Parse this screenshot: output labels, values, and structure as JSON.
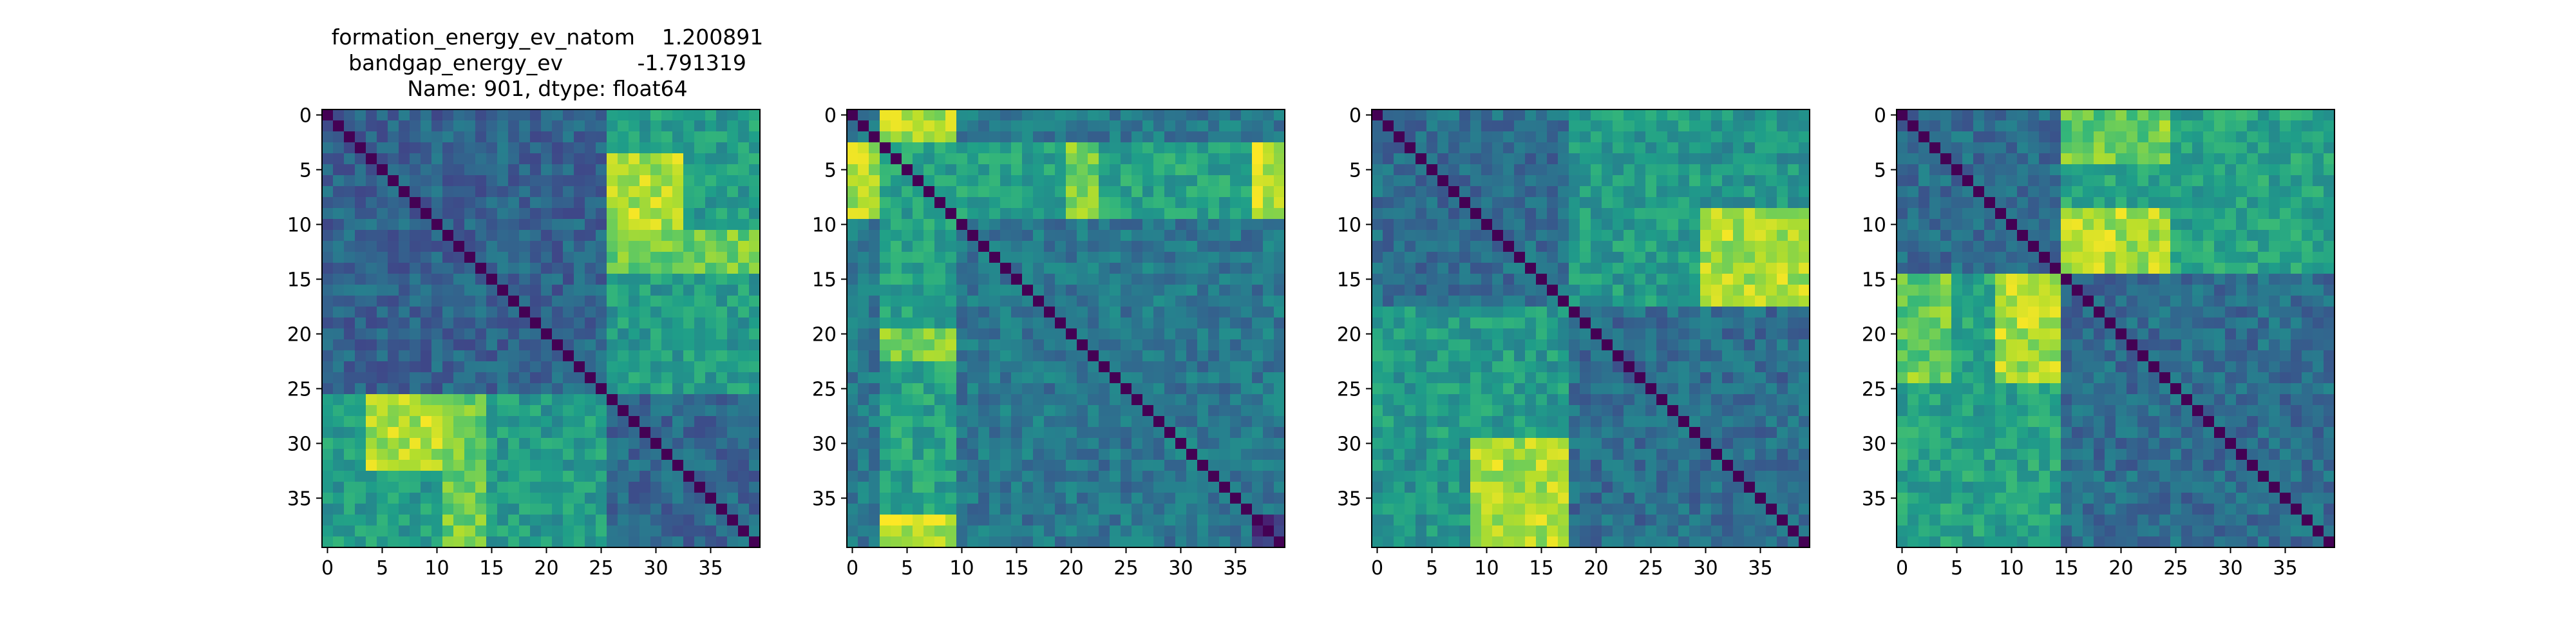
{
  "title": {
    "line1": "formation_energy_ev_natom    1.200891",
    "line2": "bandgap_energy_ev           -1.791319",
    "line3": "Name: 901, dtype: float64"
  },
  "colormap": {
    "name": "viridis",
    "stops": [
      "#440154",
      "#482878",
      "#3e4989",
      "#31688e",
      "#26828e",
      "#1f9e89",
      "#35b779",
      "#6ece58",
      "#b5de2b",
      "#fde725"
    ]
  },
  "chart_data": [
    {
      "type": "heatmap",
      "size": 40,
      "xticks": [
        "0",
        "5",
        "10",
        "15",
        "20",
        "25",
        "30",
        "35"
      ],
      "yticks": [
        "0",
        "5",
        "10",
        "15",
        "20",
        "25",
        "30",
        "35"
      ],
      "blocks": [
        {
          "rows": [
            0,
            25
          ],
          "cols": [
            0,
            25
          ],
          "level": 0.32
        },
        {
          "rows": [
            26,
            39
          ],
          "cols": [
            26,
            39
          ],
          "level": 0.34
        },
        {
          "rows": [
            0,
            25
          ],
          "cols": [
            26,
            39
          ],
          "level": 0.55
        },
        {
          "rows": [
            26,
            39
          ],
          "cols": [
            0,
            25
          ],
          "level": 0.55
        },
        {
          "rows": [
            4,
            10
          ],
          "cols": [
            26,
            32
          ],
          "level": 0.85
        },
        {
          "rows": [
            11,
            14
          ],
          "cols": [
            26,
            39
          ],
          "level": 0.78
        },
        {
          "rows": [
            26,
            32
          ],
          "cols": [
            4,
            14
          ],
          "level": 0.88
        },
        {
          "rows": [
            26,
            39
          ],
          "cols": [
            11,
            14
          ],
          "level": 0.78
        }
      ]
    },
    {
      "type": "heatmap",
      "size": 40,
      "xticks": [
        "0",
        "5",
        "10",
        "15",
        "20",
        "25",
        "30",
        "35"
      ],
      "yticks": [
        "0",
        "5",
        "10",
        "15",
        "20",
        "25",
        "30",
        "35"
      ],
      "blocks": [
        {
          "rows": [
            0,
            39
          ],
          "cols": [
            0,
            39
          ],
          "level": 0.4
        },
        {
          "rows": [
            0,
            39
          ],
          "cols": [
            3,
            9
          ],
          "level": 0.58
        },
        {
          "rows": [
            3,
            9
          ],
          "cols": [
            0,
            39
          ],
          "level": 0.58
        },
        {
          "rows": [
            0,
            2
          ],
          "cols": [
            3,
            9
          ],
          "level": 0.88
        },
        {
          "rows": [
            3,
            9
          ],
          "cols": [
            0,
            2
          ],
          "level": 0.88
        },
        {
          "rows": [
            37,
            39
          ],
          "cols": [
            3,
            9
          ],
          "level": 0.9
        },
        {
          "rows": [
            3,
            9
          ],
          "cols": [
            37,
            39
          ],
          "level": 0.9
        },
        {
          "rows": [
            37,
            39
          ],
          "cols": [
            37,
            39
          ],
          "level": 0.2
        },
        {
          "rows": [
            20,
            22
          ],
          "cols": [
            3,
            9
          ],
          "level": 0.8
        },
        {
          "rows": [
            3,
            9
          ],
          "cols": [
            20,
            22
          ],
          "level": 0.8
        }
      ]
    },
    {
      "type": "heatmap",
      "size": 40,
      "xticks": [
        "0",
        "5",
        "10",
        "15",
        "20",
        "25",
        "30",
        "35"
      ],
      "yticks": [
        "0",
        "5",
        "10",
        "15",
        "20",
        "25",
        "30",
        "35"
      ],
      "blocks": [
        {
          "rows": [
            0,
            39
          ],
          "cols": [
            0,
            39
          ],
          "level": 0.36
        },
        {
          "rows": [
            0,
            17
          ],
          "cols": [
            18,
            39
          ],
          "level": 0.52
        },
        {
          "rows": [
            18,
            39
          ],
          "cols": [
            0,
            17
          ],
          "level": 0.52
        },
        {
          "rows": [
            9,
            17
          ],
          "cols": [
            30,
            35
          ],
          "level": 0.85
        },
        {
          "rows": [
            30,
            39
          ],
          "cols": [
            9,
            17
          ],
          "level": 0.88
        },
        {
          "rows": [
            18,
            29
          ],
          "cols": [
            0,
            17
          ],
          "level": 0.55
        }
      ]
    },
    {
      "type": "heatmap",
      "size": 40,
      "xticks": [
        "0",
        "5",
        "10",
        "15",
        "20",
        "25",
        "30",
        "35"
      ],
      "yticks": [
        "0",
        "5",
        "10",
        "15",
        "20",
        "25",
        "30",
        "35"
      ],
      "blocks": [
        {
          "rows": [
            0,
            39
          ],
          "cols": [
            0,
            39
          ],
          "level": 0.36
        },
        {
          "rows": [
            0,
            14
          ],
          "cols": [
            15,
            39
          ],
          "level": 0.58
        },
        {
          "rows": [
            15,
            39
          ],
          "cols": [
            0,
            14
          ],
          "level": 0.58
        },
        {
          "rows": [
            0,
            4
          ],
          "cols": [
            15,
            24
          ],
          "level": 0.8
        },
        {
          "rows": [
            9,
            14
          ],
          "cols": [
            15,
            24
          ],
          "level": 0.85
        },
        {
          "rows": [
            15,
            23
          ],
          "cols": [
            9,
            14
          ],
          "level": 0.88
        },
        {
          "rows": [
            15,
            23
          ],
          "cols": [
            0,
            3
          ],
          "level": 0.75
        }
      ]
    }
  ]
}
